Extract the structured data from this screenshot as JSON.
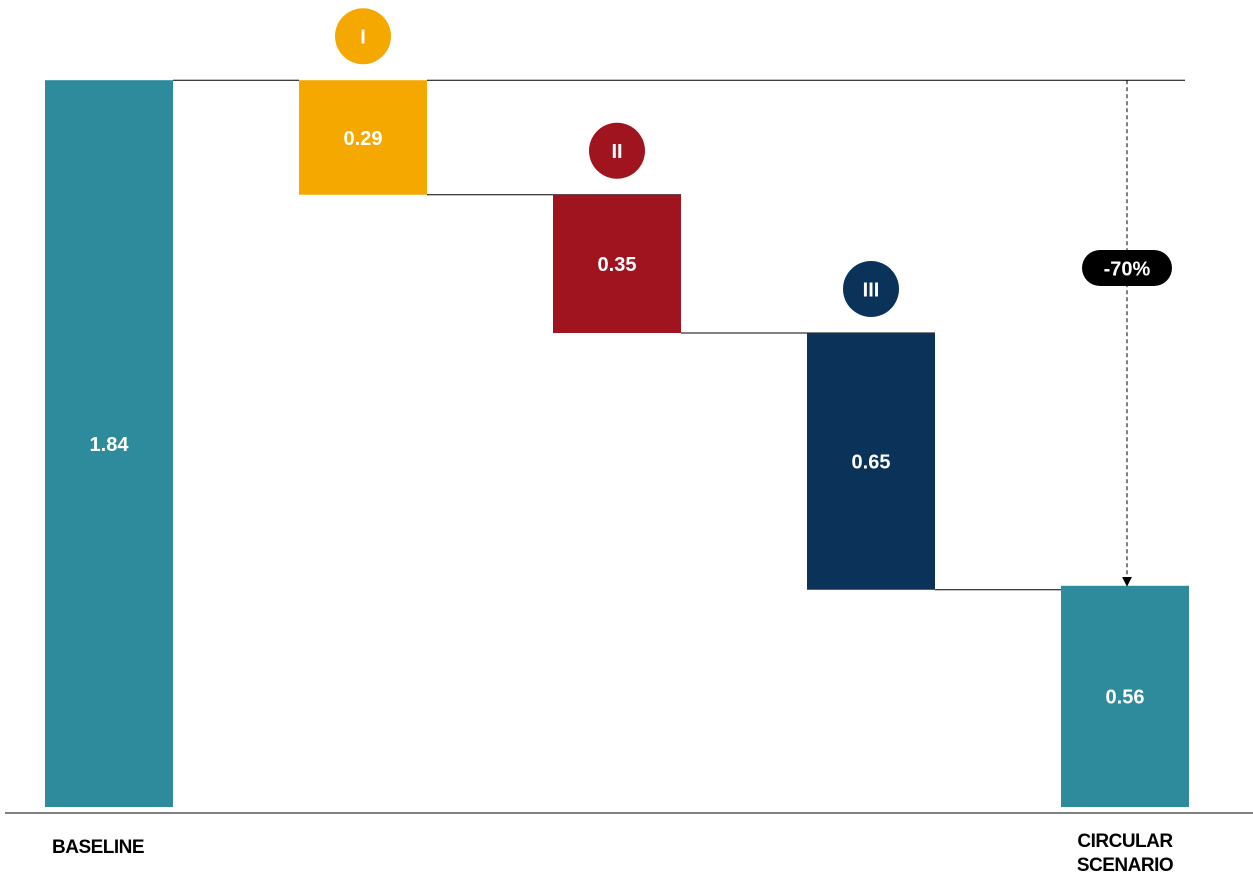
{
  "chart_data": {
    "type": "waterfall",
    "categories": [
      "BASELINE",
      null,
      null,
      null,
      "CIRCULAR SCENARIO"
    ],
    "step_labels": [
      null,
      "I",
      "II",
      "III",
      null
    ],
    "values": [
      1.84,
      0.29,
      0.35,
      0.65,
      0.56
    ],
    "measure": [
      "total",
      "decrease",
      "decrease",
      "decrease",
      "total"
    ],
    "colors": [
      "#2e8b9c",
      "#f5a800",
      "#a01420",
      "#0b335a",
      "#2e8b9c"
    ],
    "ylim": [
      0,
      2
    ],
    "annotation": "-70%"
  }
}
